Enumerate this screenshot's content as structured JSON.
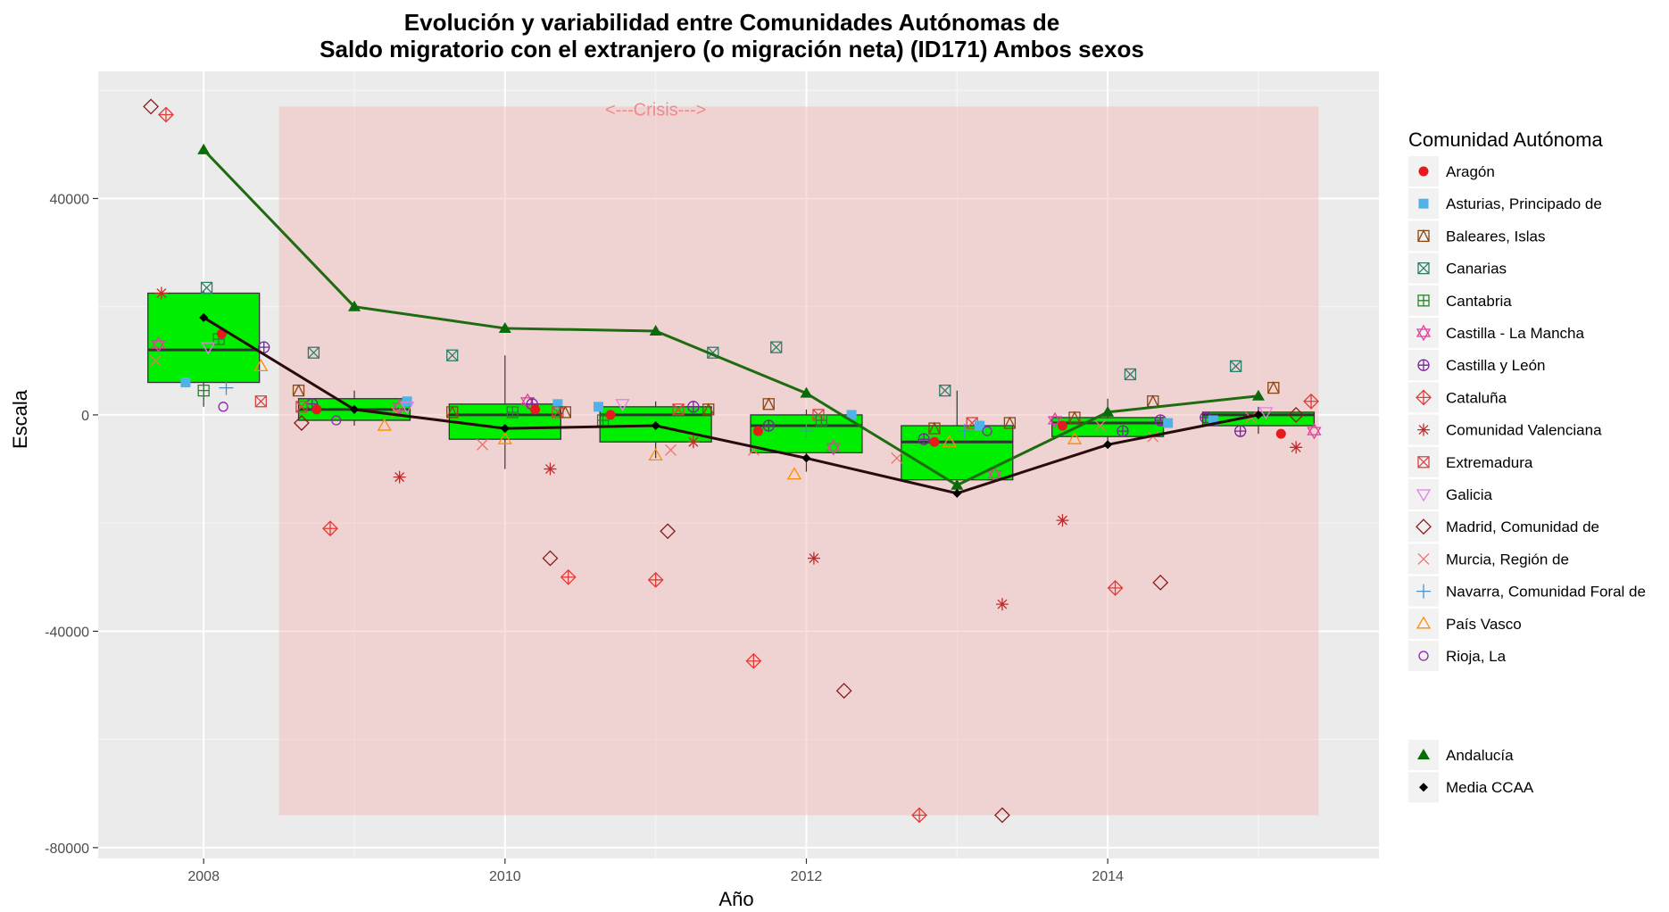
{
  "chart_data": {
    "type": "boxplot-line-scatter",
    "title_line1": "Evolución y variabilidad entre Comunidades Autónomas de",
    "title_line2": "Saldo migratorio con el extranjero (o migración neta) (ID171) Ambos sexos",
    "xlabel": "Año",
    "ylabel": "Escala",
    "xlim": [
      2007.3,
      2015.8
    ],
    "ylim": [
      -82000,
      63500
    ],
    "x_ticks": [
      2008,
      2010,
      2012,
      2014
    ],
    "y_ticks": [
      -80000,
      -40000,
      0,
      40000
    ],
    "y_tick_labels": [
      "-80000",
      "-40000",
      "0",
      "40000"
    ],
    "grid": true,
    "legend_position": "right",
    "crisis_annotation": {
      "text": "<---Crisis--->",
      "x_start": 2008.5,
      "x_end": 2015.4,
      "y_bottom": -74000,
      "y_top": 57000,
      "label_x": 2011,
      "color": "#f4c2c2"
    },
    "legend_title": "Comunidad Autónoma",
    "legend_regions": [
      {
        "name": "Aragón",
        "color": "#e41a1c",
        "symbol": "circle"
      },
      {
        "name": "Asturias, Principado de",
        "color": "#4fb3e8",
        "symbol": "square"
      },
      {
        "name": "Baleares, Islas",
        "color": "#8b4513",
        "symbol": "square-cross"
      },
      {
        "name": "Canarias",
        "color": "#2e7d6b",
        "symbol": "square-x"
      },
      {
        "name": "Cantabria",
        "color": "#2e7d32",
        "symbol": "square-plus"
      },
      {
        "name": "Castilla - La Mancha",
        "color": "#e040a0",
        "symbol": "star-david"
      },
      {
        "name": "Castilla y León",
        "color": "#7b1fa2",
        "symbol": "circle-plus"
      },
      {
        "name": "Cataluña",
        "color": "#e53935",
        "symbol": "diamond-plus"
      },
      {
        "name": "Comunidad Valenciana",
        "color": "#c62828",
        "symbol": "asterisk"
      },
      {
        "name": "Extremadura",
        "color": "#d84343",
        "symbol": "square-x"
      },
      {
        "name": "Galicia",
        "color": "#e67ee6",
        "symbol": "triangle-down"
      },
      {
        "name": "Madrid, Comunidad de",
        "color": "#8b1a1a",
        "symbol": "diamond"
      },
      {
        "name": "Murcia, Región de",
        "color": "#f07070",
        "symbol": "x"
      },
      {
        "name": "Navarra, Comunidad Foral de",
        "color": "#4a90c8",
        "symbol": "plus"
      },
      {
        "name": "País Vasco",
        "color": "#ff8c00",
        "symbol": "triangle"
      },
      {
        "name": "Rioja, La",
        "color": "#8e24aa",
        "symbol": "circle-open"
      }
    ],
    "legend_extra": [
      {
        "name": "Andalucía",
        "color": "#0b6b0b",
        "symbol": "triangle-filled"
      },
      {
        "name": "Media CCAA",
        "color": "#000000",
        "symbol": "diamond-filled"
      }
    ],
    "box_color": "#00ee00",
    "boxes": [
      {
        "x": 2008,
        "q1": 6000,
        "median": 12000,
        "q3": 22500,
        "whisker_low": 1500,
        "whisker_high": 23000
      },
      {
        "x": 2009,
        "q1": -1000,
        "median": 1000,
        "q3": 3000,
        "whisker_low": -2000,
        "whisker_high": 4500
      },
      {
        "x": 2010,
        "q1": -4500,
        "median": 0,
        "q3": 2000,
        "whisker_low": -10000,
        "whisker_high": 11000
      },
      {
        "x": 2011,
        "q1": -5000,
        "median": 0,
        "q3": 1500,
        "whisker_low": -8000,
        "whisker_high": 2500
      },
      {
        "x": 2012,
        "q1": -7000,
        "median": -2000,
        "q3": 0,
        "whisker_low": -10500,
        "whisker_high": 1000
      },
      {
        "x": 2013,
        "q1": -12000,
        "median": -5000,
        "q3": -2000,
        "whisker_low": -13000,
        "whisker_high": 4500
      },
      {
        "x": 2014,
        "q1": -4000,
        "median": -1500,
        "q3": -500,
        "whisker_low": -5000,
        "whisker_high": 3000
      },
      {
        "x": 2015,
        "q1": -2000,
        "median": 0,
        "q3": 500,
        "whisker_low": -3500,
        "whisker_high": 1500
      }
    ],
    "series": [
      {
        "name": "Andalucía",
        "color": "#1f6b0f",
        "x": [
          2008,
          2009,
          2010,
          2011,
          2012,
          2013,
          2014,
          2015
        ],
        "values": [
          49000,
          20000,
          16000,
          15500,
          4000,
          -13000,
          500,
          3500
        ]
      },
      {
        "name": "Media CCAA",
        "color": "#2a0a0a",
        "x": [
          2008,
          2009,
          2010,
          2011,
          2012,
          2013,
          2014,
          2015
        ],
        "values": [
          18000,
          1000,
          -2500,
          -2000,
          -8000,
          -14500,
          -5500,
          0
        ]
      }
    ],
    "scatter_points": [
      {
        "x": 2007.65,
        "y": 57000,
        "region": 11
      },
      {
        "x": 2007.75,
        "y": 55500,
        "region": 7
      },
      {
        "x": 2007.72,
        "y": 22500,
        "region": 8
      },
      {
        "x": 2008.02,
        "y": 23500,
        "region": 3
      },
      {
        "x": 2007.7,
        "y": 13000,
        "region": 5
      },
      {
        "x": 2007.68,
        "y": 10000,
        "region": 12
      },
      {
        "x": 2008.1,
        "y": 14000,
        "region": 4
      },
      {
        "x": 2008.12,
        "y": 15000,
        "region": 0
      },
      {
        "x": 2008.03,
        "y": 12500,
        "region": 10
      },
      {
        "x": 2008.4,
        "y": 12500,
        "region": 6
      },
      {
        "x": 2008.38,
        "y": 9000,
        "region": 14
      },
      {
        "x": 2007.88,
        "y": 6000,
        "region": 1
      },
      {
        "x": 2008.0,
        "y": 4500,
        "region": 4
      },
      {
        "x": 2008.15,
        "y": 5000,
        "region": 13
      },
      {
        "x": 2008.13,
        "y": 1500,
        "region": 15
      },
      {
        "x": 2008.38,
        "y": 2500,
        "region": 9
      },
      {
        "x": 2008.63,
        "y": 4500,
        "region": 2
      },
      {
        "x": 2008.72,
        "y": 2000,
        "region": 6
      },
      {
        "x": 2008.65,
        "y": 1500,
        "region": 9
      },
      {
        "x": 2008.75,
        "y": 1000,
        "region": 0
      },
      {
        "x": 2008.65,
        "y": -1500,
        "region": 11
      },
      {
        "x": 2008.73,
        "y": 11500,
        "region": 3
      },
      {
        "x": 2008.84,
        "y": -21000,
        "region": 7
      },
      {
        "x": 2008.88,
        "y": -1000,
        "region": 15
      },
      {
        "x": 2009.2,
        "y": -2000,
        "region": 14
      },
      {
        "x": 2009.3,
        "y": 1500,
        "region": 5
      },
      {
        "x": 2009.28,
        "y": 500,
        "region": 12
      },
      {
        "x": 2009.35,
        "y": 2500,
        "region": 1
      },
      {
        "x": 2009.3,
        "y": -11500,
        "region": 8
      },
      {
        "x": 2009.35,
        "y": 1500,
        "region": 10
      },
      {
        "x": 2009.65,
        "y": 11000,
        "region": 3
      },
      {
        "x": 2009.65,
        "y": 500,
        "region": 2
      },
      {
        "x": 2009.85,
        "y": -5500,
        "region": 12
      },
      {
        "x": 2010.0,
        "y": -4500,
        "region": 14
      },
      {
        "x": 2010.05,
        "y": 500,
        "region": 4
      },
      {
        "x": 2010.15,
        "y": 2500,
        "region": 5
      },
      {
        "x": 2010.18,
        "y": 2000,
        "region": 6
      },
      {
        "x": 2010.2,
        "y": 1000,
        "region": 0
      },
      {
        "x": 2010.35,
        "y": 2000,
        "region": 1
      },
      {
        "x": 2010.35,
        "y": 500,
        "region": 9
      },
      {
        "x": 2010.4,
        "y": 500,
        "region": 2
      },
      {
        "x": 2010.3,
        "y": -10000,
        "region": 8
      },
      {
        "x": 2010.3,
        "y": -26500,
        "region": 11
      },
      {
        "x": 2010.42,
        "y": -30000,
        "region": 7
      },
      {
        "x": 2010.62,
        "y": 1500,
        "region": 1
      },
      {
        "x": 2010.65,
        "y": -1000,
        "region": 4
      },
      {
        "x": 2010.78,
        "y": 2000,
        "region": 10
      },
      {
        "x": 2010.7,
        "y": 0,
        "region": 0
      },
      {
        "x": 2011.0,
        "y": -7500,
        "region": 14
      },
      {
        "x": 2011.0,
        "y": -30500,
        "region": 7
      },
      {
        "x": 2011.08,
        "y": -21500,
        "region": 11
      },
      {
        "x": 2011.1,
        "y": -6500,
        "region": 12
      },
      {
        "x": 2011.15,
        "y": 1000,
        "region": 9
      },
      {
        "x": 2011.25,
        "y": 1500,
        "region": 6
      },
      {
        "x": 2011.25,
        "y": -5000,
        "region": 8
      },
      {
        "x": 2011.35,
        "y": 1000,
        "region": 2
      },
      {
        "x": 2011.38,
        "y": 11500,
        "region": 3
      },
      {
        "x": 2011.65,
        "y": -6500,
        "region": 12
      },
      {
        "x": 2011.65,
        "y": -45500,
        "region": 7
      },
      {
        "x": 2011.68,
        "y": -3000,
        "region": 0
      },
      {
        "x": 2011.75,
        "y": 2000,
        "region": 2
      },
      {
        "x": 2011.8,
        "y": 12500,
        "region": 3
      },
      {
        "x": 2011.75,
        "y": -2000,
        "region": 6
      },
      {
        "x": 2011.92,
        "y": -11000,
        "region": 14
      },
      {
        "x": 2012.0,
        "y": -3000,
        "region": 13
      },
      {
        "x": 2012.05,
        "y": -26500,
        "region": 8
      },
      {
        "x": 2012.08,
        "y": 0,
        "region": 9
      },
      {
        "x": 2012.1,
        "y": -1000,
        "region": 4
      },
      {
        "x": 2012.18,
        "y": -6000,
        "region": 5
      },
      {
        "x": 2012.25,
        "y": -51000,
        "region": 11
      },
      {
        "x": 2012.3,
        "y": 0,
        "region": 1
      },
      {
        "x": 2012.6,
        "y": -8000,
        "region": 12
      },
      {
        "x": 2012.75,
        "y": -74000,
        "region": 7
      },
      {
        "x": 2012.78,
        "y": -4500,
        "region": 6
      },
      {
        "x": 2012.85,
        "y": -2500,
        "region": 2
      },
      {
        "x": 2012.85,
        "y": -5000,
        "region": 0
      },
      {
        "x": 2012.92,
        "y": 4500,
        "region": 3
      },
      {
        "x": 2012.95,
        "y": -5000,
        "region": 14
      },
      {
        "x": 2013.05,
        "y": -3000,
        "region": 13
      },
      {
        "x": 2013.1,
        "y": -1500,
        "region": 9
      },
      {
        "x": 2013.15,
        "y": -2000,
        "region": 1
      },
      {
        "x": 2013.2,
        "y": -3000,
        "region": 15
      },
      {
        "x": 2013.25,
        "y": -11000,
        "region": 5
      },
      {
        "x": 2013.3,
        "y": -35000,
        "region": 8
      },
      {
        "x": 2013.3,
        "y": -74000,
        "region": 11
      },
      {
        "x": 2013.35,
        "y": -1500,
        "region": 2
      },
      {
        "x": 2013.65,
        "y": -1000,
        "region": 5
      },
      {
        "x": 2013.7,
        "y": -19500,
        "region": 8
      },
      {
        "x": 2013.7,
        "y": -2000,
        "region": 0
      },
      {
        "x": 2013.78,
        "y": -4500,
        "region": 14
      },
      {
        "x": 2013.78,
        "y": -500,
        "region": 2
      },
      {
        "x": 2013.95,
        "y": -2000,
        "region": 12
      },
      {
        "x": 2014.05,
        "y": -32000,
        "region": 7
      },
      {
        "x": 2014.1,
        "y": -3000,
        "region": 6
      },
      {
        "x": 2014.15,
        "y": 7500,
        "region": 3
      },
      {
        "x": 2014.3,
        "y": -4000,
        "region": 12
      },
      {
        "x": 2014.35,
        "y": -31000,
        "region": 11
      },
      {
        "x": 2014.3,
        "y": 2500,
        "region": 2
      },
      {
        "x": 2014.35,
        "y": -1000,
        "region": 6
      },
      {
        "x": 2014.4,
        "y": -1500,
        "region": 1
      },
      {
        "x": 2014.65,
        "y": -500,
        "region": 6
      },
      {
        "x": 2014.7,
        "y": -1000,
        "region": 1
      },
      {
        "x": 2014.88,
        "y": -3000,
        "region": 6
      },
      {
        "x": 2014.85,
        "y": 9000,
        "region": 3
      },
      {
        "x": 2014.95,
        "y": -500,
        "region": 12
      },
      {
        "x": 2015.05,
        "y": 500,
        "region": 10
      },
      {
        "x": 2015.1,
        "y": 5000,
        "region": 2
      },
      {
        "x": 2015.15,
        "y": -3500,
        "region": 0
      },
      {
        "x": 2015.25,
        "y": -6000,
        "region": 8
      },
      {
        "x": 2015.25,
        "y": 0,
        "region": 11
      },
      {
        "x": 2015.35,
        "y": 2500,
        "region": 7
      },
      {
        "x": 2015.37,
        "y": -3000,
        "region": 5
      }
    ]
  }
}
